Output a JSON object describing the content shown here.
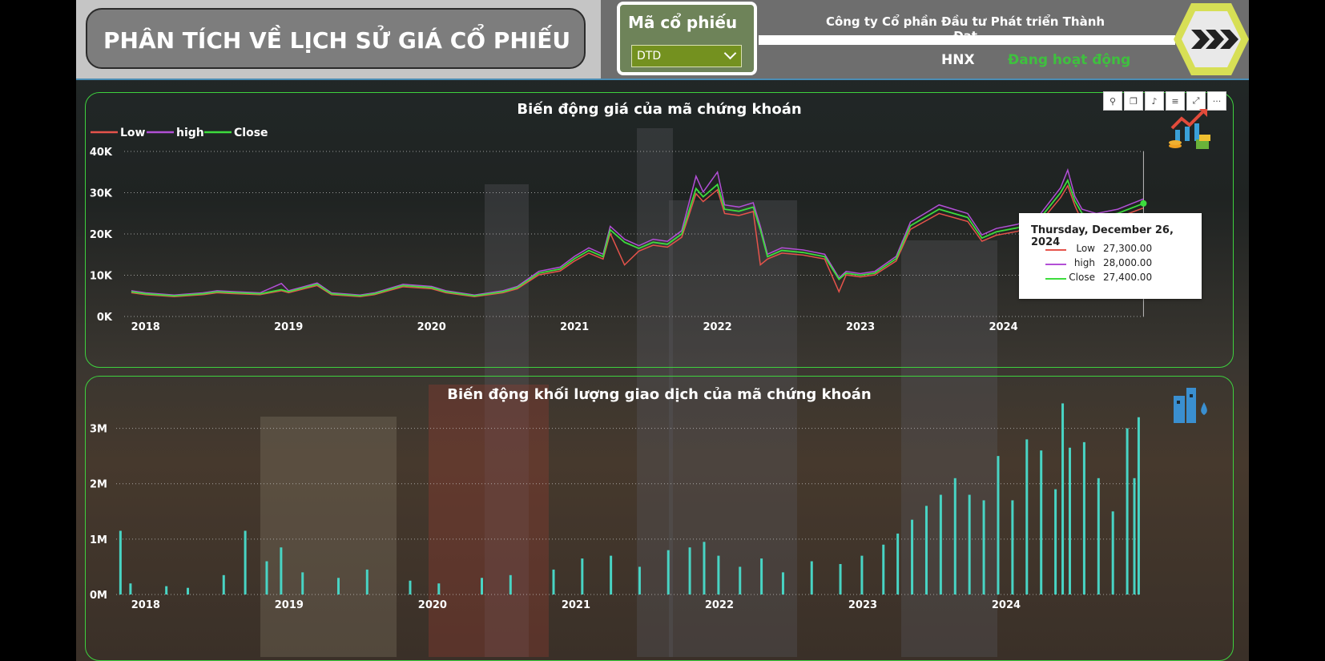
{
  "header": {
    "title": "PHÂN TÍCH VỀ LỊCH SỬ GIÁ CỔ PHIẾU",
    "ticker_label": "Mã cổ phiếu",
    "ticker_value": "DTD",
    "company_name": "Công ty Cổ phần Đầu tư Phát triển Thành Đạt",
    "exchange": "HNX",
    "status": "Đang hoạt động"
  },
  "colors": {
    "low": "#e5534b",
    "high": "#b24fd6",
    "close": "#3ddc3d",
    "volume": "#48d4c4",
    "panel_border": "#3ed13e",
    "status_green": "#3fc03f"
  },
  "icons": [
    "chevron-down-icon",
    "chevrons-right-icon",
    "stock-growth-icon",
    "building-water-icon",
    "pin-icon",
    "copy-icon",
    "bell-icon",
    "filter-icon",
    "focus-mode-icon",
    "more-options-icon"
  ],
  "toolbar": {
    "pin": "⚲",
    "copy": "❐",
    "bell": "♪",
    "filter": "≡",
    "focus": "⤢",
    "more": "···"
  },
  "tooltip": {
    "date": "Thursday, December 26, 2024",
    "rows": [
      {
        "name": "Low",
        "value": "27,300.00"
      },
      {
        "name": "high",
        "value": "28,000.00"
      },
      {
        "name": "Close",
        "value": "27,400.00"
      }
    ]
  },
  "chart_data": [
    {
      "type": "line",
      "title": "Biến động giá của mã chứng khoán",
      "legend": [
        "Low",
        "high",
        "Close"
      ],
      "legend_position": "top-left",
      "x_ticks": [
        "2018",
        "2019",
        "2020",
        "2021",
        "2022",
        "2023",
        "2024"
      ],
      "y_ticks": [
        "0K",
        "10K",
        "20K",
        "30K",
        "40K"
      ],
      "ylim": [
        0,
        40000
      ],
      "xlim": [
        2017.85,
        2025.0
      ],
      "grid": true,
      "series": [
        {
          "name": "Close",
          "x": [
            2017.9,
            2018.0,
            2018.2,
            2018.4,
            2018.5,
            2018.6,
            2018.8,
            2018.95,
            2019.0,
            2019.2,
            2019.3,
            2019.5,
            2019.6,
            2019.8,
            2020.0,
            2020.1,
            2020.3,
            2020.5,
            2020.6,
            2020.75,
            2020.9,
            2021.0,
            2021.1,
            2021.2,
            2021.25,
            2021.35,
            2021.45,
            2021.55,
            2021.65,
            2021.75,
            2021.85,
            2021.9,
            2022.0,
            2022.05,
            2022.15,
            2022.25,
            2022.3,
            2022.35,
            2022.45,
            2022.6,
            2022.75,
            2022.85,
            2022.9,
            2023.0,
            2023.1,
            2023.25,
            2023.35,
            2023.45,
            2023.55,
            2023.65,
            2023.75,
            2023.85,
            2023.95,
            2024.1,
            2024.25,
            2024.4,
            2024.45,
            2024.5,
            2024.55,
            2024.65,
            2024.8,
            2024.95,
            2024.98
          ],
          "values": [
            6000,
            5500,
            5000,
            5500,
            6000,
            5800,
            5500,
            6500,
            6000,
            7800,
            5500,
            5000,
            5500,
            7500,
            7000,
            6000,
            5000,
            6000,
            7000,
            10500,
            11500,
            14000,
            16000,
            14500,
            21000,
            18000,
            16500,
            18000,
            17500,
            20000,
            31000,
            29000,
            32000,
            26000,
            25500,
            26500,
            21000,
            14500,
            16000,
            15500,
            14500,
            9000,
            10500,
            10000,
            10500,
            14000,
            22000,
            24000,
            26000,
            25000,
            24000,
            19000,
            20500,
            21500,
            23500,
            30000,
            33000,
            28000,
            25000,
            24000,
            25000,
            27000,
            27400
          ]
        },
        {
          "name": "high",
          "x": [
            2018.95,
            2021.85,
            2022.0,
            2023.6,
            2024.45
          ],
          "values": [
            8000,
            34000,
            35000,
            28500,
            35500
          ]
        },
        {
          "name": "Low",
          "x": [
            2021.35,
            2022.3,
            2022.85,
            2024.55
          ],
          "values": [
            12500,
            12500,
            6000,
            23000
          ]
        }
      ]
    },
    {
      "type": "bar",
      "title": "Biến động khối lượng giao dịch của mã chứng khoán",
      "x_ticks": [
        "2018",
        "2019",
        "2020",
        "2021",
        "2022",
        "2023",
        "2024"
      ],
      "y_ticks": [
        "0M",
        "1M",
        "2M",
        "3M"
      ],
      "ylim": [
        0,
        3500000
      ],
      "xlim": [
        2017.85,
        2025.0
      ],
      "grid": true,
      "series": [
        {
          "name": "Volume",
          "x": [
            2017.88,
            2017.95,
            2018.2,
            2018.35,
            2018.6,
            2018.75,
            2018.9,
            2019.0,
            2019.15,
            2019.4,
            2019.6,
            2019.9,
            2020.1,
            2020.4,
            2020.6,
            2020.9,
            2021.1,
            2021.3,
            2021.5,
            2021.7,
            2021.85,
            2021.95,
            2022.05,
            2022.2,
            2022.35,
            2022.5,
            2022.7,
            2022.9,
            2023.05,
            2023.2,
            2023.3,
            2023.4,
            2023.5,
            2023.6,
            2023.7,
            2023.8,
            2023.9,
            2024.0,
            2024.1,
            2024.2,
            2024.3,
            2024.4,
            2024.45,
            2024.5,
            2024.6,
            2024.7,
            2024.8,
            2024.9,
            2024.95,
            2024.98
          ],
          "values": [
            1150000,
            200000,
            150000,
            120000,
            350000,
            1150000,
            600000,
            850000,
            400000,
            300000,
            450000,
            250000,
            200000,
            300000,
            350000,
            450000,
            650000,
            700000,
            500000,
            800000,
            850000,
            950000,
            700000,
            500000,
            650000,
            400000,
            600000,
            550000,
            700000,
            900000,
            1100000,
            1350000,
            1600000,
            1800000,
            2100000,
            1800000,
            1700000,
            2500000,
            1700000,
            2800000,
            2600000,
            1900000,
            3450000,
            2650000,
            2750000,
            2100000,
            1500000,
            3000000,
            2100000,
            3200000
          ]
        }
      ]
    }
  ]
}
